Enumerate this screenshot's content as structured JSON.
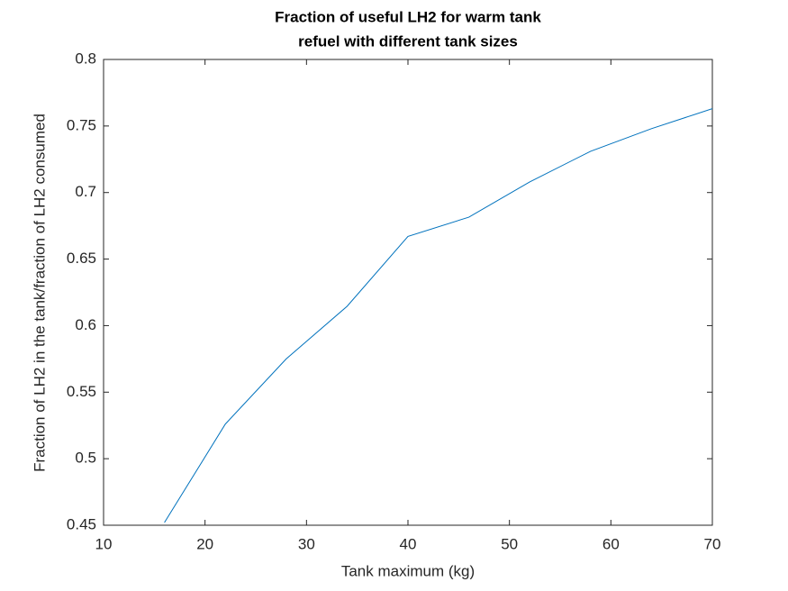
{
  "chart_data": {
    "type": "line",
    "title": [
      "Fraction of useful LH2 for warm tank",
      "refuel with different tank sizes"
    ],
    "xlabel": "Tank maximum (kg)",
    "ylabel": "Fraction of LH2 in the tank/fraction of LH2 consumed",
    "x": [
      16,
      22,
      28,
      34,
      40,
      46,
      52,
      58,
      64,
      70
    ],
    "series": [
      {
        "color": "#0072bd",
        "values": [
          0.452,
          0.526,
          0.575,
          0.6145,
          0.667,
          0.6815,
          0.708,
          0.731,
          0.748,
          0.763
        ]
      }
    ],
    "xlim": [
      10,
      70
    ],
    "xticks": [
      10,
      20,
      30,
      40,
      50,
      60,
      70
    ],
    "ylim": [
      0.45,
      0.8
    ],
    "yticks": [
      0.45,
      0.5,
      0.55,
      0.6,
      0.65,
      0.7,
      0.75,
      0.8
    ]
  }
}
